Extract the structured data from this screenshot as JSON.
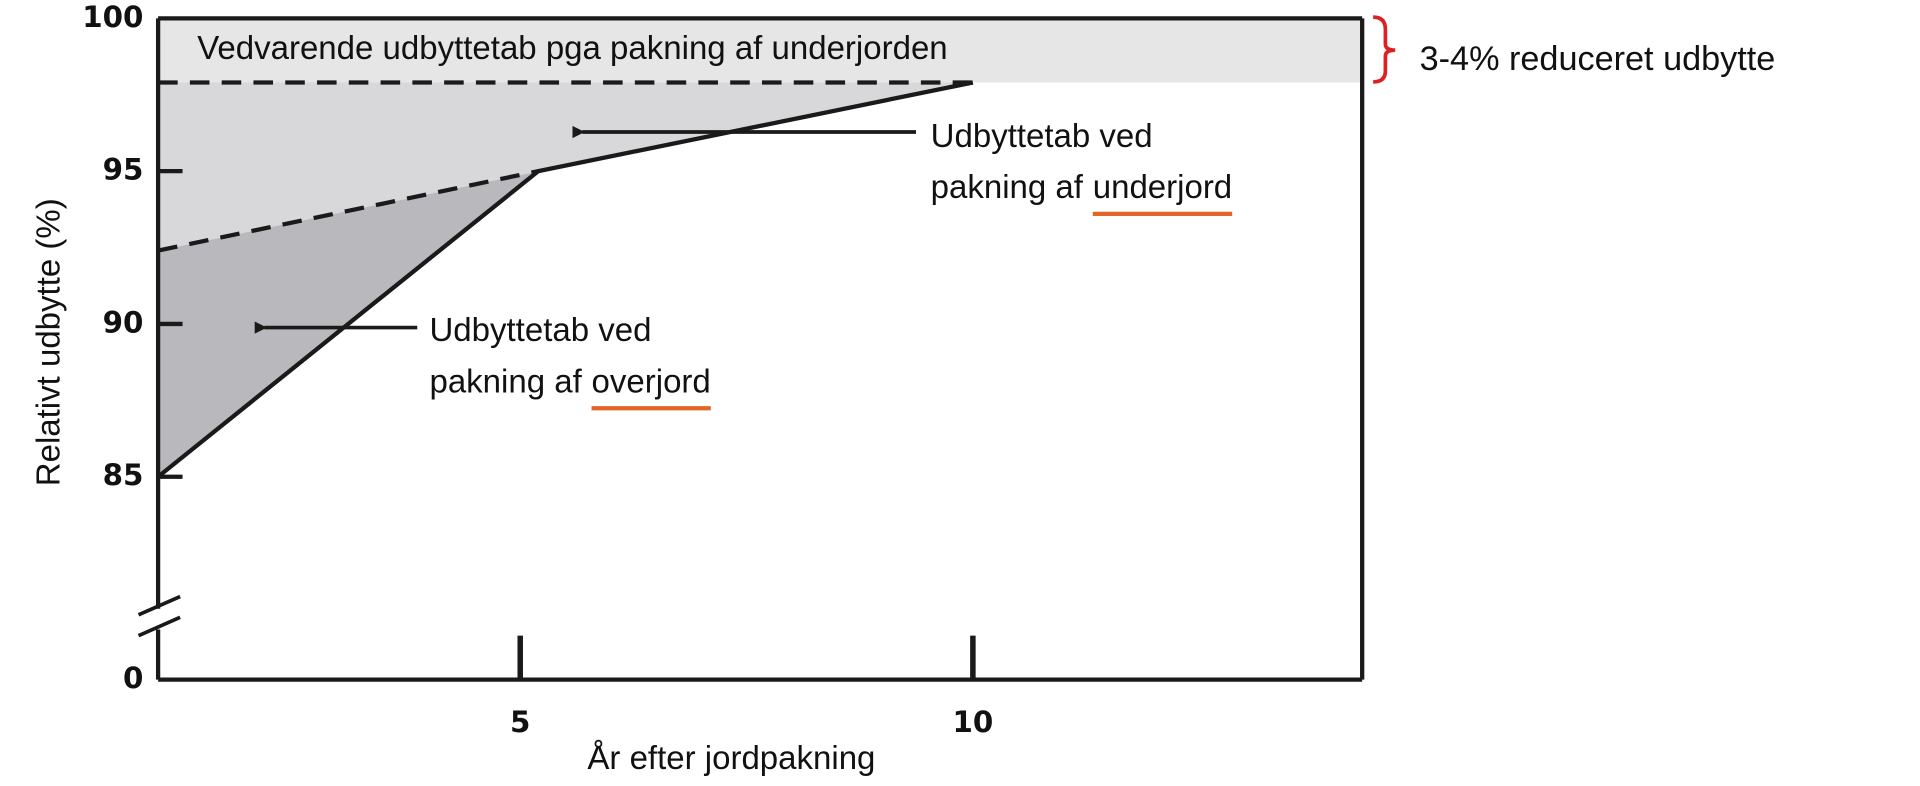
{
  "chart_data": {
    "type": "line",
    "ylabel": "Relativt udbytte (%)",
    "xlabel": "År efter jordpakning",
    "xlim": [
      1,
      14.3
    ],
    "xticks": [
      5,
      10
    ],
    "ylim": [
      80,
      100
    ],
    "yticks": [
      85,
      90,
      95,
      100
    ],
    "y_below_break_tick": 0,
    "band": {
      "ylim": [
        97.9,
        100
      ],
      "label": "Vedvarende udbyttetab pga pakning af underjorden",
      "color": "#e6e6e6"
    },
    "series": [
      {
        "color": "#1a1a1a",
        "style": "solid",
        "x": [
          1,
          5.2,
          10
        ],
        "values": [
          85,
          95,
          97.9
        ]
      },
      {
        "color": "#1a1a1a",
        "style": "dashed",
        "x": [
          1,
          5.2
        ],
        "values": [
          92.4,
          95
        ]
      },
      {
        "color": "#1a1a1a",
        "style": "dashed",
        "x": [
          1,
          10
        ],
        "values": [
          97.9,
          97.9
        ]
      }
    ],
    "area_colors": [
      "#b9b9bd",
      "#d8d8db"
    ],
    "annotations": [
      {
        "text": "Udbyttetab ved",
        "prefix": "pakning af",
        "underlined": "underjord"
      },
      {
        "text": "Udbyttetab ved",
        "prefix": "pakning af",
        "underlined": "overjord"
      }
    ],
    "underline_color": "#e0662a",
    "bracket_label": "3-4% reduceret udbytte",
    "bracket_color": "#e02020"
  }
}
